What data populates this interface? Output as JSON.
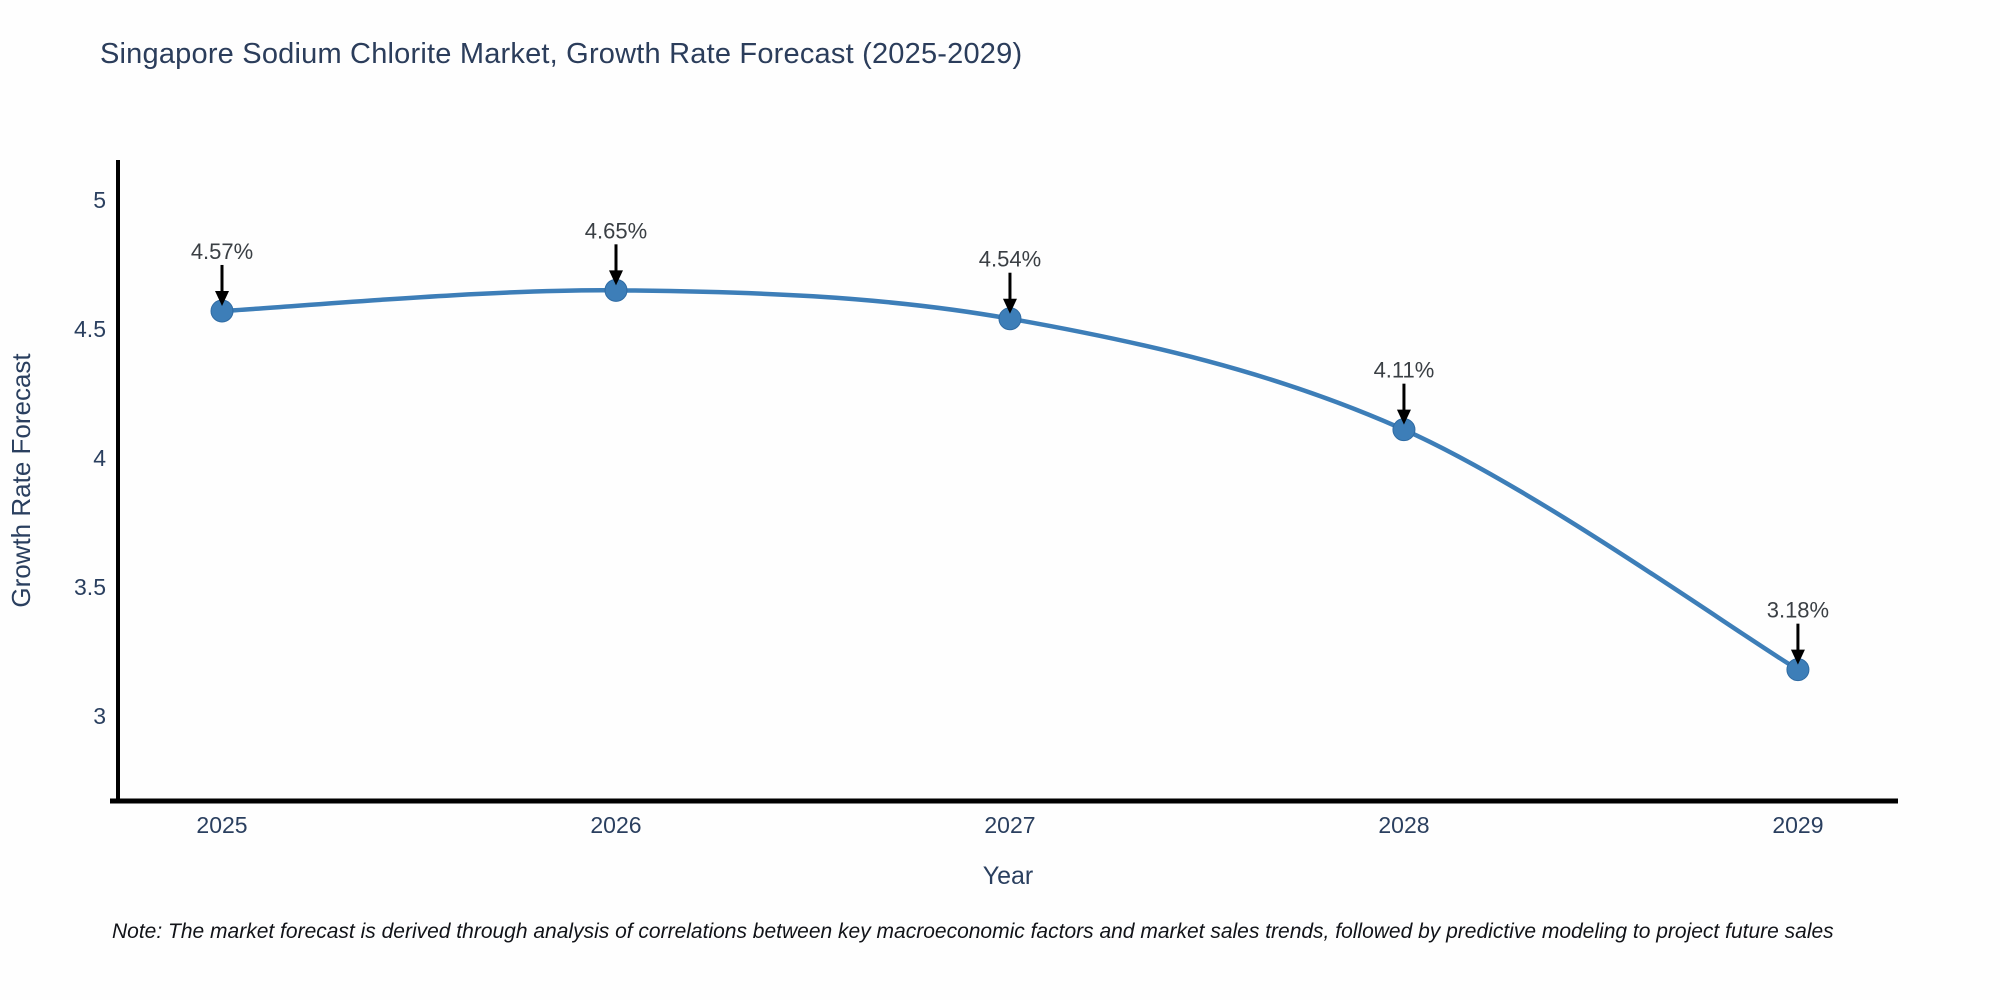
{
  "title": "Singapore Sodium Chlorite Market, Growth Rate Forecast (2025-2029)",
  "note": "Note: The market forecast is derived through analysis of correlations between key macroeconomic factors and market sales trends, followed by predictive modeling to project future sales",
  "chart_data": {
    "type": "line",
    "title": "Singapore Sodium Chlorite Market, Growth Rate Forecast (2025-2029)",
    "xlabel": "Year",
    "ylabel": "Growth Rate Forecast",
    "x": [
      2025,
      2026,
      2027,
      2028,
      2029
    ],
    "series": [
      {
        "name": "Growth Rate Forecast",
        "values": [
          4.57,
          4.65,
          4.54,
          4.11,
          3.18
        ]
      }
    ],
    "point_labels": [
      "4.57%",
      "4.65%",
      "4.54%",
      "4.11%",
      "3.18%"
    ],
    "xticks": [
      "2025",
      "2026",
      "2027",
      "2028",
      "2029"
    ],
    "yticks": [
      5,
      4.5,
      4,
      3.5,
      3
    ],
    "xlim": [
      2024.736,
      2029.254
    ],
    "ylim": [
      2.671,
      5.155
    ],
    "grid": false,
    "legend": false,
    "line_shape": "spline",
    "colors": {
      "line": "#3d7eb8",
      "marker": "#3d7eb8",
      "marker_edge": "#2f6ba3",
      "axis": "#000000",
      "tick_label": "#2a3f5f",
      "axis_label": "#2a3f5f",
      "annotation_text": "#3a3f44",
      "annotation_arrow": "#000000"
    }
  }
}
